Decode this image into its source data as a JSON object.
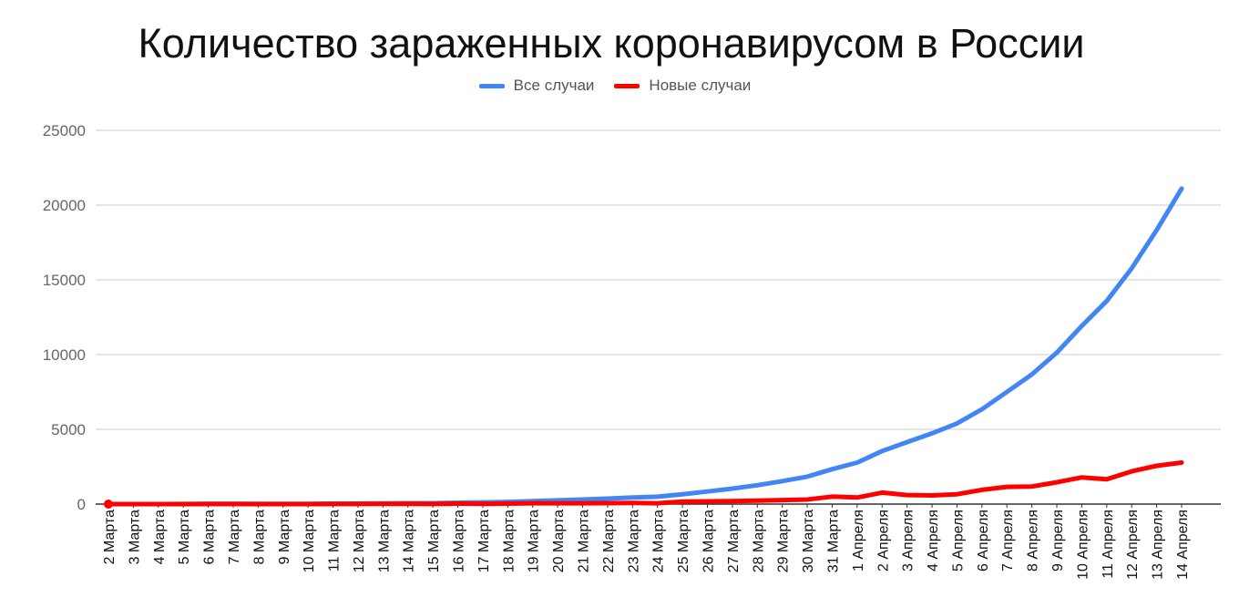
{
  "chart_data": {
    "type": "line",
    "title": "Количество зараженных коронавирусом в России",
    "xlabel": "",
    "ylabel": "",
    "categories": [
      "2 Марта",
      "3 Марта",
      "4 Марта",
      "5 Марта",
      "6 Марта",
      "7 Марта",
      "8 Марта",
      "9 Марта",
      "10 Марта",
      "11 Марта",
      "12 Марта",
      "13 Марта",
      "14 Марта",
      "15 Марта",
      "16 Марта",
      "17 Марта",
      "18 Марта",
      "19 Марта",
      "20 Марта",
      "21 Марта",
      "22 Марта",
      "23 Марта",
      "24 Марта",
      "25 Марта",
      "26 Марта",
      "27 Марта",
      "28 Марта",
      "29 Марта",
      "30 Марта",
      "31 Марта",
      "1 Апреля",
      "2 Апреля",
      "3 Апреля",
      "4 Апреля",
      "5 Апреля",
      "6 Апреля",
      "7 Апреля",
      "8 Апреля",
      "9 Апреля",
      "10 Апреля",
      "11 Апреля",
      "12 Апреля",
      "13 Апреля",
      "14 Апреля"
    ],
    "series": [
      {
        "name": "Все случаи",
        "color": "#4285f4",
        "values": [
          3,
          3,
          3,
          4,
          10,
          14,
          17,
          17,
          20,
          28,
          34,
          45,
          59,
          63,
          93,
          114,
          147,
          199,
          253,
          306,
          367,
          438,
          495,
          658,
          840,
          1036,
          1264,
          1534,
          1836,
          2337,
          2777,
          3548,
          4149,
          4731,
          5389,
          6343,
          7497,
          8672,
          10131,
          11917,
          13584,
          15770,
          18328,
          21102
        ]
      },
      {
        "name": "Новые случаи",
        "color": "#ff0000",
        "values": [
          1,
          0,
          0,
          1,
          6,
          4,
          3,
          0,
          3,
          8,
          6,
          11,
          14,
          4,
          30,
          21,
          33,
          52,
          54,
          53,
          61,
          71,
          57,
          163,
          182,
          196,
          228,
          270,
          302,
          501,
          440,
          771,
          601,
          582,
          658,
          954,
          1154,
          1175,
          1459,
          1786,
          1667,
          2186,
          2558,
          2774
        ]
      }
    ],
    "ylim": [
      0,
      25000
    ],
    "yticks": [
      0,
      5000,
      10000,
      15000,
      20000,
      25000
    ],
    "grid": true,
    "legend_position": "top"
  }
}
